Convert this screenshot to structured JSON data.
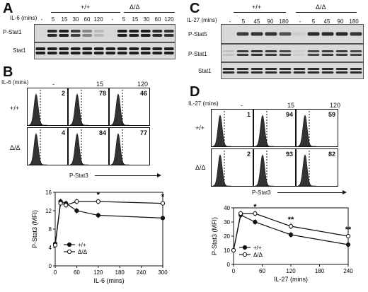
{
  "panels": {
    "A": {
      "letter": "A",
      "treatment_label": "IL-6 (mins)",
      "groups": [
        "+/+",
        "Δ/Δ"
      ],
      "timepoints": [
        "-",
        "5",
        "15",
        "30",
        "60",
        "120",
        "-",
        "5",
        "15",
        "30",
        "60",
        "120"
      ],
      "blots": [
        "P-Stat1",
        "Stat1"
      ]
    },
    "B": {
      "letter": "B",
      "treatment_label": "IL-6 (mins)",
      "columns": [
        "-",
        "15",
        "120"
      ],
      "rows": [
        {
          "genotype": "+/+",
          "percents": [
            "2",
            "78",
            "46"
          ]
        },
        {
          "genotype": "Δ/Δ",
          "percents": [
            "4",
            "84",
            "77"
          ]
        }
      ],
      "x_label": "P-Stat3"
    },
    "C": {
      "letter": "C",
      "treatment_label": "IL-27 (mins)",
      "groups": [
        "+/+",
        "Δ/Δ"
      ],
      "timepoints": [
        "-",
        "5",
        "45",
        "90",
        "180",
        "-",
        "5",
        "45",
        "90",
        "180"
      ],
      "blots": [
        "P-Stat5",
        "P-Stat1",
        "Stat1"
      ]
    },
    "D": {
      "letter": "D",
      "treatment_label": "IL-27 (mins)",
      "columns": [
        "-",
        "15",
        "120"
      ],
      "rows": [
        {
          "genotype": "+/+",
          "percents": [
            "1",
            "94",
            "59"
          ]
        },
        {
          "genotype": "Δ/Δ",
          "percents": [
            "2",
            "93",
            "82"
          ]
        }
      ],
      "x_label": "P-Stat3"
    }
  },
  "chart_data": [
    {
      "type": "line",
      "panel": "B",
      "xlabel": "IL-6 (mins)",
      "ylabel": "P-Stat3 (MFI)",
      "xlim": [
        0,
        300
      ],
      "ylim": [
        0,
        16
      ],
      "xticks": [
        "0",
        "60",
        "120",
        "180",
        "240",
        "300"
      ],
      "yticks": [
        "0",
        "4",
        "8",
        "12",
        "16"
      ],
      "legend_position": "bottom-left",
      "series": [
        {
          "name": "+/+",
          "marker": "filled",
          "x": [
            0,
            15,
            30,
            60,
            120,
            300
          ],
          "y": [
            4.8,
            14.0,
            13.6,
            12.0,
            11.0,
            10.4
          ]
        },
        {
          "name": "Δ/Δ",
          "marker": "open",
          "x": [
            0,
            15,
            30,
            60,
            120,
            300
          ],
          "y": [
            4.5,
            13.6,
            13.2,
            14.0,
            14.0,
            13.6
          ]
        }
      ],
      "annotations": [
        {
          "text": "*",
          "x": 120
        },
        {
          "text": "*",
          "x": 300
        }
      ]
    },
    {
      "type": "line",
      "panel": "D",
      "xlabel": "IL-27 (mins)",
      "ylabel": "P-Stat3 (MFI)",
      "xlim": [
        0,
        240
      ],
      "ylim": [
        0,
        40
      ],
      "xticks": [
        "0",
        "60",
        "120",
        "180",
        "240"
      ],
      "yticks": [
        "0",
        "10",
        "20",
        "30",
        "40"
      ],
      "legend_position": "bottom-left",
      "series": [
        {
          "name": "+/+",
          "marker": "filled",
          "x": [
            0,
            15,
            45,
            120,
            240
          ],
          "y": [
            10,
            35,
            30,
            21,
            14
          ]
        },
        {
          "name": "Δ/Δ",
          "marker": "open",
          "x": [
            0,
            15,
            45,
            120,
            240
          ],
          "y": [
            10,
            36,
            36,
            27,
            20
          ]
        }
      ],
      "annotations": [
        {
          "text": "*",
          "x": 45
        },
        {
          "text": "**",
          "x": 120
        },
        {
          "text": "**",
          "x": 240
        }
      ]
    }
  ]
}
